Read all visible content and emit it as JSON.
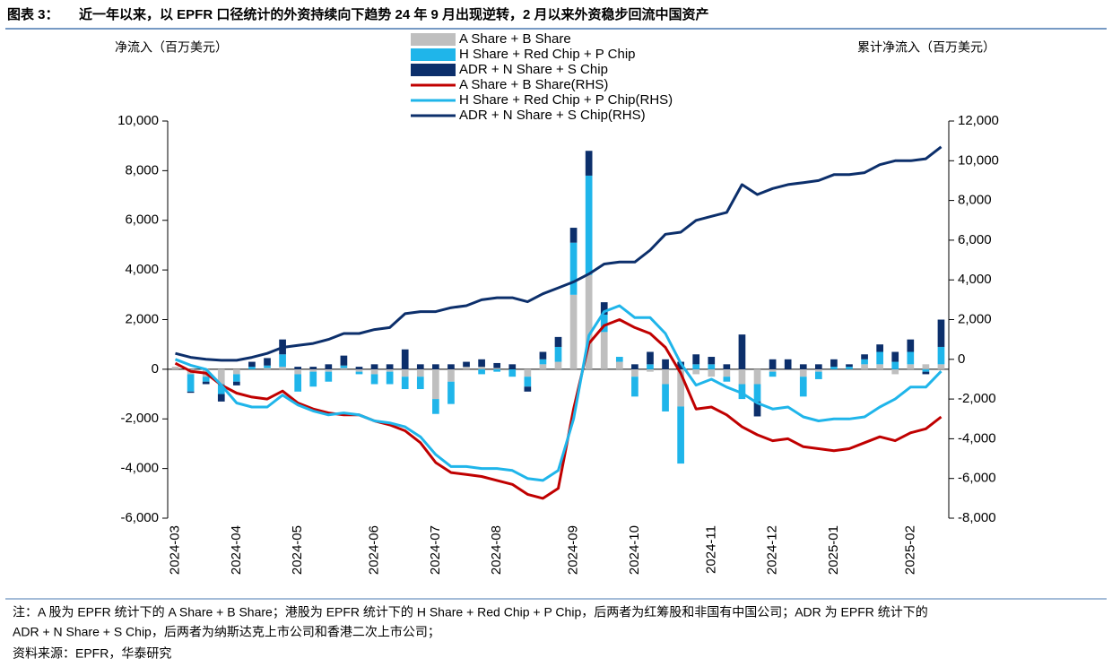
{
  "figure_label": "图表 3：",
  "chart_data": {
    "type": "bar_line",
    "title": "近一年以来，以 EPFR 口径统计的外资持续向下趋势 24 年 9 月出现逆转，2 月以来外资稳步回流中国资产",
    "ylabel": "净流入（百万美元）",
    "y2label": "累计净流入（百万美元）",
    "categories": [
      "2024-03",
      null,
      null,
      null,
      "2024-04",
      null,
      null,
      null,
      "2024-05",
      null,
      null,
      null,
      null,
      "2024-06",
      null,
      null,
      null,
      "2024-07",
      null,
      null,
      null,
      "2024-08",
      null,
      null,
      null,
      null,
      "2024-09",
      null,
      null,
      null,
      "2024-10",
      null,
      null,
      null,
      null,
      "2024-11",
      null,
      null,
      null,
      "2024-12",
      null,
      null,
      null,
      "2025-01",
      null,
      null,
      null,
      null,
      "2025-02",
      null,
      null
    ],
    "ylim": [
      -6000,
      10000
    ],
    "yticks": [
      {
        "value": -6000,
        "label": "-6,000"
      },
      {
        "value": -4000,
        "label": "-4,000"
      },
      {
        "value": -2000,
        "label": "-2,000"
      },
      0,
      {
        "value": 2000,
        "label": "2,000"
      },
      {
        "value": 4000,
        "label": "4,000"
      },
      {
        "value": 6000,
        "label": "6,000"
      },
      {
        "value": 8000,
        "label": "8,000"
      },
      {
        "value": 10000,
        "label": "10,000"
      }
    ],
    "y2lim": [
      -8000,
      12000
    ],
    "y2ticks": [
      {
        "value": -8000,
        "label": "-8,000"
      },
      {
        "value": -6000,
        "label": "-6,000"
      },
      {
        "value": -4000,
        "label": "-4,000"
      },
      {
        "value": -2000,
        "label": "-2,000"
      },
      0,
      {
        "value": 2000,
        "label": "2,000"
      },
      {
        "value": 4000,
        "label": "4,000"
      },
      {
        "value": 6000,
        "label": "6,000"
      },
      {
        "value": 8000,
        "label": "8,000"
      },
      {
        "value": 10000,
        "label": "10,000"
      },
      {
        "value": 12000,
        "label": "12,000"
      }
    ],
    "series": [
      {
        "name": "A Share + B Share",
        "kind": "bar",
        "color": "#bfbfbf",
        "values": [
          100,
          -200,
          -300,
          -600,
          -200,
          0,
          50,
          100,
          -200,
          -100,
          -100,
          50,
          -100,
          -200,
          -100,
          -300,
          -300,
          -1200,
          -500,
          100,
          100,
          50,
          0,
          -300,
          200,
          300,
          3000,
          3800,
          1500,
          300,
          -300,
          -100,
          -600,
          -1500,
          -200,
          -300,
          -300,
          -600,
          -600,
          -100,
          0,
          -300,
          -100,
          0,
          0,
          200,
          200,
          -200,
          200,
          200,
          200
        ]
      },
      {
        "name": "H Share + Red Chip + P Chip",
        "kind": "bar",
        "color": "#1fb5ea",
        "values": [
          0,
          -700,
          -200,
          -400,
          -300,
          100,
          100,
          500,
          -700,
          -600,
          -400,
          100,
          -100,
          -400,
          -500,
          -500,
          -500,
          -600,
          -900,
          0,
          -200,
          -100,
          -300,
          -400,
          200,
          600,
          2100,
          4000,
          700,
          200,
          -800,
          200,
          -1100,
          -2300,
          200,
          200,
          -200,
          -600,
          -700,
          -200,
          0,
          -800,
          -300,
          100,
          100,
          200,
          500,
          300,
          500,
          -100,
          700
        ]
      },
      {
        "name": "ADR + N Share + S Chip",
        "kind": "bar",
        "color": "#0c2f6b",
        "values": [
          0,
          -50,
          -100,
          -300,
          -150,
          200,
          300,
          600,
          100,
          100,
          200,
          400,
          100,
          200,
          200,
          800,
          200,
          200,
          200,
          200,
          300,
          200,
          200,
          -200,
          300,
          400,
          600,
          1000,
          500,
          0,
          200,
          500,
          400,
          300,
          400,
          300,
          200,
          1400,
          -600,
          400,
          400,
          200,
          200,
          300,
          100,
          200,
          300,
          400,
          500,
          -100,
          1100
        ]
      },
      {
        "name": "A Share + B Share(RHS)",
        "kind": "line",
        "axis": "y2",
        "color": "#c00000",
        "values": [
          -200,
          -600,
          -700,
          -1300,
          -1700,
          -1900,
          -2000,
          -1600,
          -2200,
          -2500,
          -2700,
          -2800,
          -2800,
          -3100,
          -3300,
          -3600,
          -4200,
          -5200,
          -5700,
          -5800,
          -5900,
          -6100,
          -6300,
          -6800,
          -7000,
          -6500,
          -2500,
          800,
          1700,
          2000,
          1600,
          1300,
          600,
          -700,
          -2500,
          -2400,
          -2800,
          -3400,
          -3800,
          -4100,
          -4000,
          -4400,
          -4500,
          -4600,
          -4500,
          -4200,
          -3900,
          -4100,
          -3700,
          -3500,
          -2900
        ]
      },
      {
        "name": "H Share + Red Chip + P Chip(RHS)",
        "kind": "line",
        "axis": "y2",
        "color": "#1fb5ea",
        "values": [
          0,
          -300,
          -500,
          -1300,
          -2200,
          -2400,
          -2400,
          -1800,
          -2300,
          -2600,
          -2800,
          -2700,
          -2800,
          -3100,
          -3200,
          -3400,
          -3900,
          -4800,
          -5400,
          -5400,
          -5500,
          -5500,
          -5600,
          -6000,
          -6100,
          -5600,
          -3000,
          1200,
          2400,
          2700,
          2100,
          2100,
          1300,
          -200,
          -1300,
          -1000,
          -1400,
          -1700,
          -2200,
          -2500,
          -2400,
          -2900,
          -3100,
          -3000,
          -3000,
          -2900,
          -2400,
          -2000,
          -1400,
          -1400,
          -600
        ]
      },
      {
        "name": "ADR + N Share + S Chip(RHS)",
        "kind": "line",
        "axis": "y2",
        "color": "#0c2f6b",
        "values": [
          300,
          100,
          0,
          -50,
          -50,
          100,
          300,
          600,
          700,
          800,
          1000,
          1300,
          1300,
          1500,
          1600,
          2300,
          2400,
          2400,
          2600,
          2700,
          3000,
          3100,
          3100,
          2900,
          3300,
          3600,
          3900,
          4300,
          4800,
          4900,
          4900,
          5500,
          6300,
          6400,
          7000,
          7200,
          7400,
          8800,
          8300,
          8600,
          8800,
          8900,
          9000,
          9300,
          9300,
          9400,
          9800,
          10000,
          10000,
          10100,
          10700
        ]
      }
    ]
  },
  "notes": [
    "注：A 股为 EPFR 统计下的 A Share + B Share；港股为 EPFR 统计下的 H Share + Red Chip + P Chip，后两者为红筹股和非国有中国公司；ADR 为 EPFR 统计下的",
    "ADR + N Share + S Chip，后两者为纳斯达克上市公司和香港二次上市公司；"
  ],
  "source": "资料来源：EPFR，华泰研究"
}
